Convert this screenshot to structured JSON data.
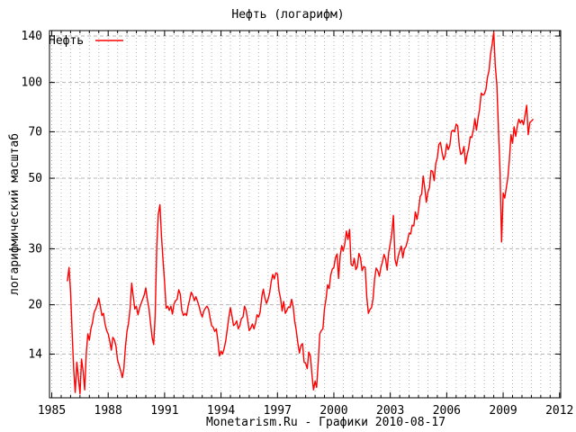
{
  "caption": "Monetarism.Ru - Графики  2010-08-17",
  "colors": {
    "line": "#ff0000",
    "grid": "#b4b4b4",
    "border": "#000000",
    "background": "#ffffff",
    "text": "#000000"
  },
  "chart_data": {
    "type": "line",
    "title": "Нефть  (логарифм)",
    "ylabel": "логарифмический масштаб",
    "xlabel": "",
    "y_scale": "log",
    "grid": true,
    "legend_position": "top-left",
    "x_ticks": [
      1985,
      1988,
      1991,
      1994,
      1997,
      2000,
      2003,
      2006,
      2009,
      2012
    ],
    "x_minor_interval": 0.5,
    "y_ticks": [
      14,
      20,
      30,
      50,
      70,
      100,
      140
    ],
    "xlim": [
      1984.88,
      2012.06
    ],
    "ylim": [
      10.2,
      145.6
    ],
    "series": [
      {
        "name": "Нефть",
        "color": "#ff0000",
        "x_start": 1985.8333,
        "x_step": 0.0833333,
        "values": [
          23.8,
          26.2,
          22.0,
          16.5,
          12.5,
          10.6,
          13.2,
          11.8,
          10.5,
          13.5,
          12.4,
          10.8,
          14.0,
          16.2,
          15.5,
          16.8,
          17.6,
          18.9,
          19.4,
          20.0,
          21.0,
          19.8,
          18.5,
          18.8,
          17.4,
          16.6,
          16.2,
          15.4,
          14.4,
          15.8,
          15.5,
          14.8,
          13.4,
          12.9,
          12.4,
          11.8,
          12.6,
          14.8,
          16.5,
          17.5,
          19.5,
          23.4,
          21.2,
          19.4,
          19.8,
          18.6,
          19.5,
          20.2,
          20.8,
          21.5,
          22.6,
          20.8,
          19.5,
          17.6,
          15.8,
          15.0,
          18.4,
          30.5,
          38.5,
          41.3,
          33.0,
          27.5,
          23.5,
          19.5,
          19.8,
          19.2,
          19.8,
          18.7,
          20.1,
          20.6,
          20.8,
          22.3,
          21.6,
          19.2,
          18.5,
          18.8,
          18.5,
          19.8,
          20.8,
          21.9,
          21.4,
          20.6,
          21.2,
          20.5,
          19.8,
          18.9,
          18.3,
          19.1,
          19.5,
          19.8,
          19.4,
          18.2,
          17.2,
          17.0,
          16.5,
          16.8,
          15.4,
          13.8,
          14.3,
          14.0,
          14.6,
          15.4,
          16.8,
          18.3,
          19.6,
          18.4,
          17.2,
          17.4,
          17.8,
          16.8,
          17.2,
          18.1,
          18.3,
          19.8,
          19.2,
          17.9,
          16.6,
          16.9,
          17.4,
          16.8,
          17.5,
          18.6,
          18.3,
          19.0,
          21.2,
          22.4,
          21.0,
          20.2,
          20.8,
          21.8,
          23.6,
          24.9,
          24.1,
          25.2,
          25.0,
          22.1,
          20.9,
          19.1,
          20.5,
          18.8,
          19.2,
          19.7,
          19.6,
          20.8,
          19.8,
          17.8,
          16.6,
          15.2,
          14.1,
          14.9,
          15.1,
          13.2,
          13.1,
          12.6,
          14.2,
          13.8,
          12.1,
          10.8,
          11.5,
          11.0,
          13.2,
          16.2,
          16.6,
          16.8,
          19.4,
          20.9,
          23.1,
          22.5,
          24.8,
          25.9,
          26.2,
          28.1,
          28.9,
          24.2,
          28.4,
          30.7,
          29.5,
          31.2,
          34.1,
          32.1,
          34.5,
          26.8,
          26.5,
          28.0,
          25.8,
          26.4,
          29.0,
          28.1,
          25.6,
          26.4,
          26.2,
          21.2,
          18.8,
          19.3,
          19.6,
          20.9,
          24.2,
          26.1,
          25.6,
          24.6,
          26.2,
          27.3,
          28.8,
          27.9,
          25.7,
          29.2,
          31.2,
          33.6,
          38.2,
          27.8,
          26.5,
          28.4,
          29.5,
          30.6,
          28.1,
          30.0,
          30.5,
          31.8,
          33.6,
          33.4,
          35.6,
          35.4,
          39.2,
          37.1,
          39.5,
          43.8,
          44.6,
          50.8,
          46.5,
          42.0,
          45.2,
          46.8,
          52.9,
          52.5,
          49.1,
          55.6,
          57.9,
          63.9,
          64.8,
          60.5,
          57.2,
          58.9,
          64.1,
          61.5,
          63.4,
          70.1,
          70.8,
          70.0,
          74.0,
          73.1,
          63.2,
          59.4,
          60.1,
          62.9,
          55.5,
          59.3,
          62.1,
          67.5,
          67.2,
          71.1,
          76.9,
          70.8,
          77.2,
          82.5,
          92.6,
          91.3,
          92.0,
          95.0,
          103.6,
          109.1,
          122.8,
          132.4,
          144.0,
          113.2,
          98.1,
          71.9,
          52.5,
          31.5,
          44.9,
          43.3,
          46.5,
          50.2,
          57.3,
          68.6,
          64.4,
          72.5,
          67.7,
          72.8,
          76.7,
          74.5,
          76.2,
          73.7,
          78.8,
          84.8,
          68.5,
          74.8,
          75.6,
          76.5
        ]
      }
    ]
  }
}
